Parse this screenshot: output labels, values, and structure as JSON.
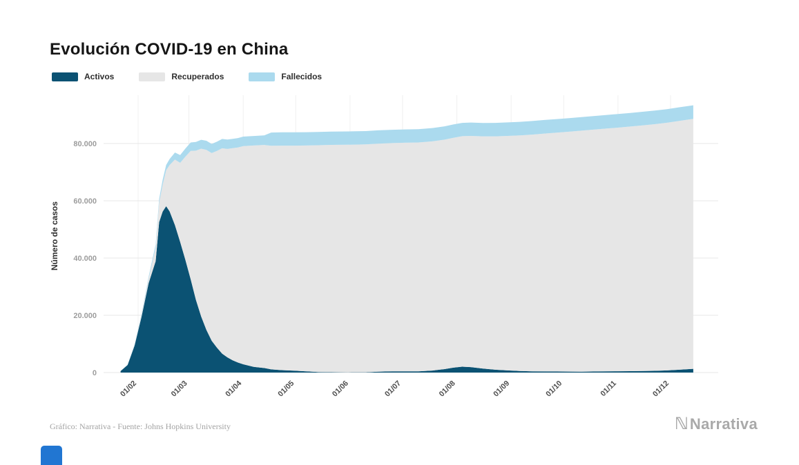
{
  "page": {
    "title": "Evolución COVID-19 en China",
    "footer_credit": "Gráfico: Narrativa - Fuente: Johns Hopkins University",
    "brand": {
      "mark": "ℕ",
      "name": "Narrativa",
      "color": "#a9a9a9"
    },
    "widget_color": "#2176d2"
  },
  "legend": [
    {
      "label": "Activos",
      "color": "#0b5273"
    },
    {
      "label": "Recuperados",
      "color": "#e6e6e6"
    },
    {
      "label": "Fallecidos",
      "color": "#abdaee"
    }
  ],
  "chart_data": {
    "type": "area",
    "stacked": true,
    "title": "Evolución COVID-19 en China",
    "xlabel": "",
    "ylabel": "Número de casos",
    "ylim": [
      0,
      96000
    ],
    "grid": true,
    "legend_position": "top-left",
    "y_ticks": [
      {
        "value": 0,
        "label": "0"
      },
      {
        "value": 20000,
        "label": "20.000"
      },
      {
        "value": 40000,
        "label": "40.000"
      },
      {
        "value": 60000,
        "label": "60.000"
      },
      {
        "value": 80000,
        "label": "80.000"
      }
    ],
    "x_ticks": [
      {
        "day": 10,
        "label": "01/02"
      },
      {
        "day": 39,
        "label": "01/03"
      },
      {
        "day": 70,
        "label": "01/04"
      },
      {
        "day": 100,
        "label": "01/05"
      },
      {
        "day": 131,
        "label": "01/06"
      },
      {
        "day": 161,
        "label": "01/07"
      },
      {
        "day": 192,
        "label": "01/08"
      },
      {
        "day": 223,
        "label": "01/09"
      },
      {
        "day": 253,
        "label": "01/10"
      },
      {
        "day": 284,
        "label": "01/11"
      },
      {
        "day": 314,
        "label": "01/12"
      }
    ],
    "x_unit": "day offset within plotted range (tick days align with dd/mm axis labels)",
    "x_days": [
      0,
      4,
      8,
      12,
      16,
      20,
      22,
      24,
      26,
      28,
      31,
      34,
      37,
      40,
      43,
      46,
      49,
      52,
      55,
      58,
      61,
      64,
      67,
      70,
      76,
      82,
      86,
      92,
      99,
      106,
      113,
      120,
      130,
      140,
      147,
      155,
      162,
      170,
      178,
      185,
      190,
      195,
      200,
      207,
      214,
      221,
      228,
      235,
      242,
      249,
      256,
      263,
      270,
      277,
      284,
      291,
      298,
      305,
      312,
      319,
      327
    ],
    "series": [
      {
        "name": "Activos",
        "color": "#0b5273",
        "values": [
          500,
          2640,
          9430,
          19650,
          31200,
          38900,
          52500,
          56200,
          58100,
          56300,
          51500,
          45600,
          39300,
          32600,
          25400,
          19600,
          14900,
          11100,
          8700,
          6600,
          5300,
          4300,
          3500,
          2900,
          2000,
          1600,
          1100,
          850,
          650,
          400,
          200,
          120,
          70,
          100,
          300,
          400,
          420,
          400,
          700,
          1200,
          1700,
          2050,
          1900,
          1400,
          1000,
          750,
          550,
          420,
          380,
          350,
          330,
          320,
          350,
          400,
          450,
          480,
          520,
          600,
          750,
          1000,
          1300
        ]
      },
      {
        "name": "Recuperados",
        "color": "#e6e6e6",
        "values": [
          28,
          49,
          171,
          632,
          1540,
          4740,
          6720,
          9420,
          12550,
          16160,
          22890,
          27650,
          36120,
          44810,
          52100,
          58600,
          62890,
          65540,
          68700,
          71740,
          72800,
          74050,
          75100,
          76200,
          77300,
          77900,
          78100,
          78400,
          78600,
          78900,
          79200,
          79400,
          79500,
          79600,
          79650,
          79750,
          79850,
          79950,
          80050,
          80150,
          80300,
          80500,
          80750,
          81100,
          81500,
          81900,
          82300,
          82700,
          83100,
          83450,
          83800,
          84150,
          84500,
          84800,
          85100,
          85450,
          85800,
          86150,
          86500,
          86900,
          87300
        ]
      },
      {
        "name": "Fallecidos",
        "color": "#abdaee",
        "values": [
          17,
          80,
          213,
          426,
          722,
          1113,
          1369,
          1666,
          1868,
          2127,
          2442,
          2715,
          2835,
          2943,
          3042,
          3100,
          3169,
          3204,
          3237,
          3255,
          3276,
          3292,
          3304,
          3312,
          3333,
          3345,
          4632,
          4643,
          4643,
          4643,
          4644,
          4645,
          4645,
          4645,
          4645,
          4646,
          4648,
          4650,
          4652,
          4655,
          4658,
          4665,
          4670,
          4680,
          4695,
          4715,
          4725,
          4732,
          4737,
          4741,
          4746,
          4748,
          4749,
          4750,
          4751,
          4752,
          4753,
          4754,
          4755,
          4757,
          4759
        ]
      }
    ]
  }
}
